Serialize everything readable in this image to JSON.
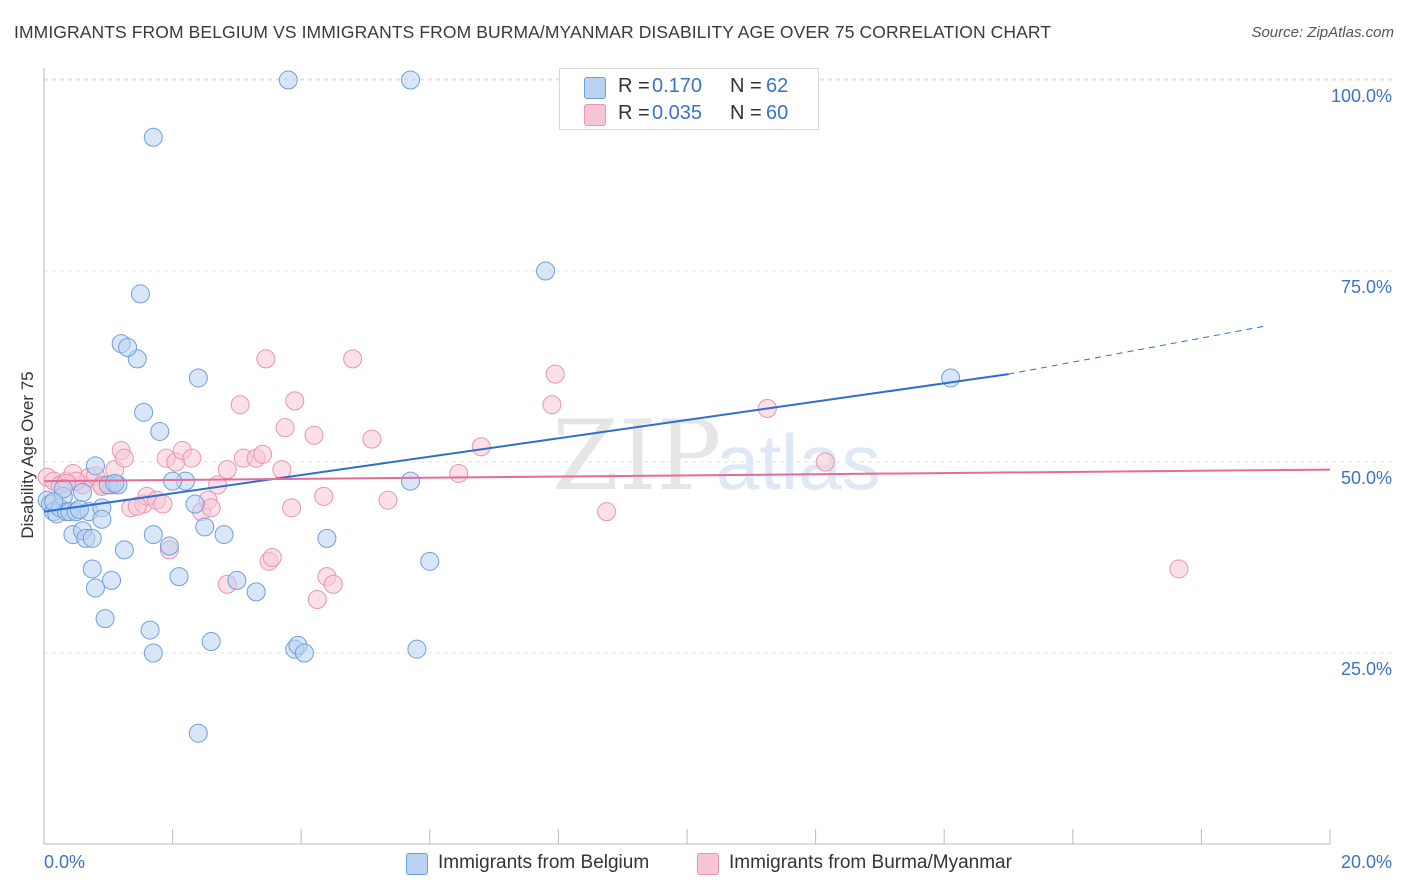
{
  "title": "IMMIGRANTS FROM BELGIUM VS IMMIGRANTS FROM BURMA/MYANMAR DISABILITY AGE OVER 75 CORRELATION CHART",
  "source": "Source: ZipAtlas.com",
  "watermark": {
    "zip": "ZIP",
    "atlas": "atlas"
  },
  "colors": {
    "blue_fill": "#b9d2f3",
    "blue_stroke": "#6f9edc",
    "blue_line": "#2c6fcf",
    "pink_fill": "#f7c6d6",
    "pink_stroke": "#e994b2",
    "pink_line": "#e56b98",
    "tick_text": "#3b72c9",
    "grid": "#e2e2e2"
  },
  "legend": {
    "series": [
      {
        "r_label": "R =",
        "r_value": "0.170",
        "n_label": "N =",
        "n_value": "62"
      },
      {
        "r_label": "R =",
        "r_value": "0.035",
        "n_label": "N =",
        "n_value": "60"
      }
    ]
  },
  "chart_data": {
    "type": "scatter",
    "title": "IMMIGRANTS FROM BELGIUM VS IMMIGRANTS FROM BURMA/MYANMAR DISABILITY AGE OVER 75 CORRELATION CHART",
    "xlabel": "",
    "ylabel": "Disability Age Over 75",
    "xlim": [
      0,
      20
    ],
    "ylim": [
      0,
      102
    ],
    "x_tick_labels": [
      "0.0%",
      "20.0%"
    ],
    "y_ticks": [
      25,
      50,
      75,
      100
    ],
    "y_tick_labels": [
      "25.0%",
      "50.0%",
      "75.0%",
      "100.0%"
    ],
    "grid": true,
    "legend_position": "top-center",
    "series": [
      {
        "name": "Immigrants from Belgium",
        "r": 0.17,
        "n": 62,
        "trend": {
          "x0": 0,
          "y0": 43.5,
          "x1": 15.0,
          "y1": 61.5,
          "dash_x1": 19.0,
          "dash_y1": 67.8
        },
        "points": [
          [
            0.05,
            45
          ],
          [
            0.1,
            44.5
          ],
          [
            0.15,
            43.5
          ],
          [
            0.2,
            43.2
          ],
          [
            0.25,
            44
          ],
          [
            0.3,
            45.5
          ],
          [
            0.35,
            43.5
          ],
          [
            0.4,
            43.5
          ],
          [
            0.5,
            43.5
          ],
          [
            0.6,
            46
          ],
          [
            0.7,
            43.5
          ],
          [
            0.8,
            49.5
          ],
          [
            0.9,
            44
          ],
          [
            1.0,
            47
          ],
          [
            1.15,
            47
          ],
          [
            0.45,
            40.5
          ],
          [
            0.6,
            41
          ],
          [
            0.65,
            40
          ],
          [
            0.75,
            40
          ],
          [
            0.9,
            42.5
          ],
          [
            1.25,
            38.5
          ],
          [
            1.45,
            63.5
          ],
          [
            1.2,
            65.5
          ],
          [
            1.3,
            65
          ],
          [
            1.5,
            72
          ],
          [
            1.55,
            56.5
          ],
          [
            1.8,
            54
          ],
          [
            1.7,
            92.5
          ],
          [
            2.4,
            61
          ],
          [
            2.35,
            44.5
          ],
          [
            2.2,
            47.5
          ],
          [
            2.5,
            41.5
          ],
          [
            2.8,
            40.5
          ],
          [
            1.7,
            40.5
          ],
          [
            1.95,
            39
          ],
          [
            2.1,
            35
          ],
          [
            3.0,
            34.5
          ],
          [
            3.3,
            33
          ],
          [
            2.6,
            26.5
          ],
          [
            1.65,
            28
          ],
          [
            1.7,
            25
          ],
          [
            2.4,
            14.5
          ],
          [
            0.75,
            36
          ],
          [
            1.05,
            34.5
          ],
          [
            0.8,
            33.5
          ],
          [
            0.95,
            29.5
          ],
          [
            3.8,
            100
          ],
          [
            5.7,
            100
          ],
          [
            7.8,
            75
          ],
          [
            5.7,
            47.5
          ],
          [
            6.0,
            37
          ],
          [
            5.8,
            25.5
          ],
          [
            4.4,
            40
          ],
          [
            3.9,
            25.5
          ],
          [
            3.95,
            26
          ],
          [
            4.05,
            25
          ],
          [
            14.1,
            61
          ],
          [
            0.3,
            46.5
          ],
          [
            0.15,
            44.8
          ],
          [
            0.55,
            43.8
          ],
          [
            1.1,
            47.2
          ],
          [
            2.0,
            47.5
          ]
        ]
      },
      {
        "name": "Immigrants from Burma/Myanmar",
        "r": 0.035,
        "n": 60,
        "trend": {
          "x0": 0,
          "y0": 47.5,
          "x1": 20,
          "y1": 49.0
        },
        "points": [
          [
            0.05,
            48
          ],
          [
            0.15,
            47.5
          ],
          [
            0.25,
            47
          ],
          [
            0.35,
            47.5
          ],
          [
            0.45,
            48.5
          ],
          [
            0.6,
            47
          ],
          [
            0.7,
            48
          ],
          [
            0.8,
            48.2
          ],
          [
            0.9,
            47
          ],
          [
            1.05,
            47
          ],
          [
            1.1,
            49
          ],
          [
            1.2,
            51.5
          ],
          [
            1.25,
            50.5
          ],
          [
            0.5,
            47.5
          ],
          [
            1.35,
            44
          ],
          [
            1.55,
            44.5
          ],
          [
            1.6,
            45.5
          ],
          [
            1.75,
            45
          ],
          [
            1.85,
            44.5
          ],
          [
            1.9,
            50.5
          ],
          [
            2.05,
            50
          ],
          [
            2.15,
            51.5
          ],
          [
            2.3,
            50.5
          ],
          [
            2.45,
            43.5
          ],
          [
            2.55,
            45
          ],
          [
            2.6,
            44
          ],
          [
            2.7,
            47
          ],
          [
            2.85,
            49
          ],
          [
            3.05,
            57.5
          ],
          [
            3.1,
            50.5
          ],
          [
            3.3,
            50.5
          ],
          [
            3.4,
            51
          ],
          [
            3.45,
            63.5
          ],
          [
            3.7,
            49
          ],
          [
            3.75,
            54.5
          ],
          [
            3.85,
            44
          ],
          [
            3.9,
            58
          ],
          [
            4.2,
            53.5
          ],
          [
            4.35,
            45.5
          ],
          [
            4.8,
            63.5
          ],
          [
            5.1,
            53
          ],
          [
            5.35,
            45
          ],
          [
            6.45,
            48.5
          ],
          [
            6.8,
            52
          ],
          [
            7.9,
            57.5
          ],
          [
            7.95,
            61.5
          ],
          [
            8.75,
            43.5
          ],
          [
            11.25,
            57
          ],
          [
            12.15,
            50
          ],
          [
            17.65,
            36
          ],
          [
            3.5,
            37
          ],
          [
            3.55,
            37.5
          ],
          [
            4.4,
            35
          ],
          [
            4.5,
            34
          ],
          [
            4.25,
            32
          ],
          [
            2.85,
            34
          ],
          [
            1.95,
            38.5
          ],
          [
            0.35,
            47.2
          ],
          [
            0.9,
            46.8
          ],
          [
            1.45,
            44.2
          ]
        ]
      }
    ]
  },
  "y_axis_label": "Disability Age Over 75",
  "x_axis": {
    "left_label": "0.0%",
    "right_label": "20.0%"
  },
  "bottom_legend": [
    "Immigrants from Belgium",
    "Immigrants from Burma/Myanmar"
  ]
}
